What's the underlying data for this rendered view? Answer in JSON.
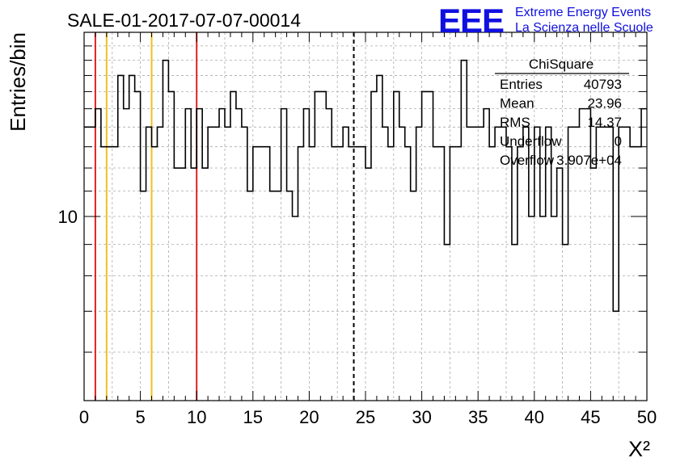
{
  "chart_data": {
    "type": "histogram",
    "title": "SALE-01-2017-07-07-00014",
    "xlabel": "X²",
    "ylabel": "Entries/bin",
    "xlim": [
      0,
      50
    ],
    "ylim": [
      5,
      20
    ],
    "log_y": true,
    "grid": true,
    "x_tick_labels": [
      "0",
      "5",
      "10",
      "15",
      "20",
      "25",
      "30",
      "35",
      "40",
      "45",
      "50"
    ],
    "y_tick_labels": [
      {
        "value": 10,
        "label": "10"
      }
    ],
    "bin_width": 0.5,
    "bin_values": [
      14,
      14,
      15,
      13,
      13,
      13,
      17,
      15,
      17,
      16,
      11,
      14,
      13,
      14,
      18,
      16,
      12,
      12,
      15,
      12,
      15,
      12,
      14,
      14,
      15,
      14,
      16,
      15,
      14,
      11,
      13,
      13,
      13,
      11,
      11,
      15,
      11,
      10,
      13,
      15,
      13,
      16,
      16,
      15,
      13,
      13,
      14,
      13,
      13,
      13,
      12,
      16,
      17,
      14,
      13,
      16,
      14,
      13,
      11,
      14,
      16,
      16,
      13,
      13,
      9,
      13,
      13,
      18,
      14,
      14,
      14,
      15,
      13,
      14,
      14,
      13,
      9,
      13,
      14,
      10,
      14,
      10,
      14,
      10,
      12,
      9,
      14,
      14,
      15,
      15,
      12,
      14,
      14,
      14,
      7,
      14,
      14,
      13,
      13,
      15
    ],
    "reference_lines": [
      {
        "x": 1,
        "color": "#dd2222"
      },
      {
        "x": 2,
        "color": "#f0c020"
      },
      {
        "x": 6,
        "color": "#f0c020"
      },
      {
        "x": 10,
        "color": "#dd2222"
      },
      {
        "x": 23.96,
        "color": "#000000",
        "style": "dashed"
      }
    ]
  },
  "stats_box": {
    "title": "ChiSquare",
    "rows": [
      {
        "label": "Entries",
        "value": "40793"
      },
      {
        "label": "Mean",
        "value": "23.96"
      },
      {
        "label": "RMS",
        "value": "14.37"
      },
      {
        "label": "Underflow",
        "value": "0"
      },
      {
        "label": "Overflow",
        "value": "3.907e+04"
      }
    ]
  },
  "logo": {
    "mark": "EEE",
    "line1": "Extreme Energy Events",
    "line2": "La Scienza nelle Scuole",
    "color": "#1010e0"
  }
}
